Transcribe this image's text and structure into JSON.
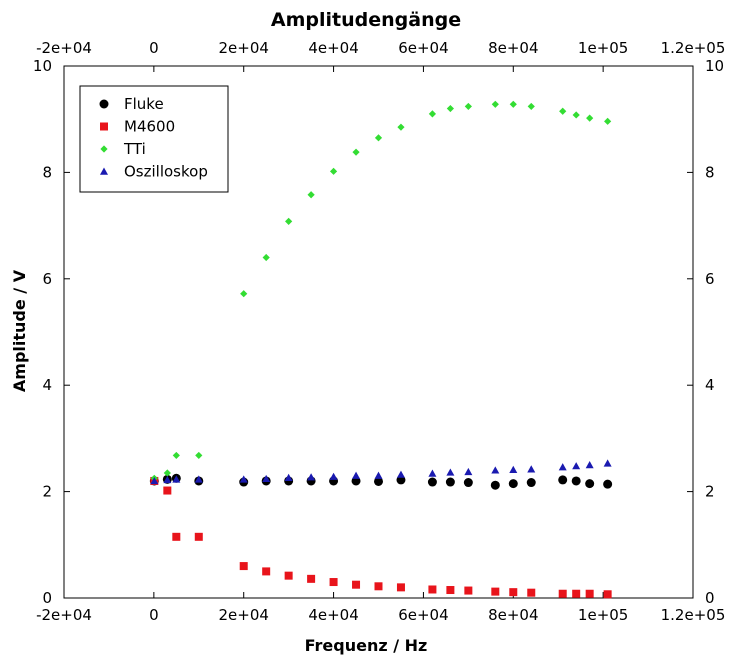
{
  "chart_data": {
    "type": "scatter",
    "title": "Amplitudengänge",
    "xlabel": "Frequenz / Hz",
    "ylabel": "Amplitude / V",
    "xlim": [
      -20000,
      120000
    ],
    "ylim": [
      0,
      10
    ],
    "x_ticks": [
      -20000,
      0,
      20000,
      40000,
      60000,
      80000,
      100000,
      120000
    ],
    "x_tick_labels": [
      "-2e+04",
      "0",
      "2e+04",
      "4e+04",
      "6e+04",
      "8e+04",
      "1e+05",
      "1.2e+05"
    ],
    "y_ticks": [
      0,
      2,
      4,
      6,
      8,
      10
    ],
    "y_tick_labels": [
      "0",
      "2",
      "4",
      "6",
      "8",
      "10"
    ],
    "mirror_axes": true,
    "grid": false,
    "legend_position": "top-left",
    "series": [
      {
        "name": "Fluke",
        "marker": "circle",
        "color": "#000000",
        "x": [
          100,
          3000,
          5000,
          10000,
          20000,
          25000,
          30000,
          35000,
          40000,
          45000,
          50000,
          55000,
          62000,
          66000,
          70000,
          76000,
          80000,
          84000,
          91000,
          94000,
          97000,
          101000
        ],
        "y": [
          2.2,
          2.23,
          2.25,
          2.2,
          2.18,
          2.2,
          2.2,
          2.2,
          2.2,
          2.2,
          2.19,
          2.22,
          2.18,
          2.18,
          2.17,
          2.12,
          2.15,
          2.17,
          2.22,
          2.2,
          2.15,
          2.14
        ]
      },
      {
        "name": "M4600",
        "marker": "square",
        "color": "#e8141b",
        "x": [
          100,
          3000,
          5000,
          10000,
          20000,
          25000,
          30000,
          35000,
          40000,
          45000,
          50000,
          55000,
          62000,
          66000,
          70000,
          76000,
          80000,
          84000,
          91000,
          94000,
          97000,
          101000
        ],
        "y": [
          2.2,
          2.02,
          1.15,
          1.15,
          0.6,
          0.5,
          0.42,
          0.36,
          0.3,
          0.25,
          0.22,
          0.2,
          0.16,
          0.15,
          0.14,
          0.12,
          0.11,
          0.1,
          0.08,
          0.08,
          0.08,
          0.07
        ]
      },
      {
        "name": "TTi",
        "marker": "diamond",
        "color": "#33dd33",
        "x": [
          100,
          3000,
          5000,
          10000,
          20000,
          25000,
          30000,
          35000,
          40000,
          45000,
          50000,
          55000,
          62000,
          66000,
          70000,
          76000,
          80000,
          84000,
          91000,
          94000,
          97000,
          101000
        ],
        "y": [
          2.25,
          2.35,
          2.68,
          2.68,
          5.72,
          6.4,
          7.08,
          7.58,
          8.02,
          8.38,
          8.65,
          8.85,
          9.1,
          9.2,
          9.24,
          9.28,
          9.28,
          9.24,
          9.15,
          9.08,
          9.02,
          8.96
        ]
      },
      {
        "name": "Oszilloskop",
        "marker": "triangle",
        "color": "#1a1ab0",
        "x": [
          100,
          3000,
          5000,
          10000,
          20000,
          25000,
          30000,
          35000,
          40000,
          45000,
          50000,
          55000,
          62000,
          66000,
          70000,
          76000,
          80000,
          84000,
          91000,
          94000,
          97000,
          101000
        ],
        "y": [
          2.2,
          2.22,
          2.23,
          2.23,
          2.23,
          2.24,
          2.26,
          2.27,
          2.28,
          2.3,
          2.3,
          2.32,
          2.34,
          2.36,
          2.37,
          2.4,
          2.41,
          2.42,
          2.46,
          2.48,
          2.5,
          2.53
        ]
      }
    ]
  }
}
